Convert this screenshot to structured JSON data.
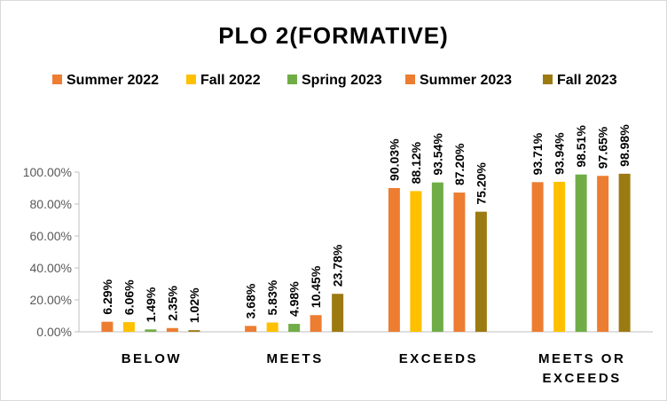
{
  "chart_data": {
    "type": "bar",
    "title": "PLO 2(FORMATIVE)",
    "categories": [
      [
        "BELOW"
      ],
      [
        "MEETS"
      ],
      [
        "EXCEEDS"
      ],
      [
        "MEETS OR",
        "EXCEEDS"
      ]
    ],
    "series": [
      {
        "name": "Summer 2022",
        "color": "#ED7D31",
        "values": [
          6.29,
          3.68,
          90.03,
          93.71
        ],
        "labels": [
          "6.29%",
          "3.68%",
          "90.03%",
          "93.71%"
        ]
      },
      {
        "name": "Fall 2022",
        "color": "#FFC000",
        "values": [
          6.06,
          5.83,
          88.12,
          93.94
        ],
        "labels": [
          "6.06%",
          "5.83%",
          "88.12%",
          "93.94%"
        ]
      },
      {
        "name": "Spring 2023",
        "color": "#70AD47",
        "values": [
          1.49,
          4.98,
          93.54,
          98.51
        ],
        "labels": [
          "1.49%",
          "4.98%",
          "93.54%",
          "98.51%"
        ]
      },
      {
        "name": "Summer 2023",
        "color": "#ED7D31",
        "values": [
          2.35,
          10.45,
          87.2,
          97.65
        ],
        "labels": [
          "2.35%",
          "10.45%",
          "87.20%",
          "97.65%"
        ]
      },
      {
        "name": "Fall 2023",
        "color": "#9C7A12",
        "values": [
          1.02,
          23.78,
          75.2,
          98.98
        ],
        "labels": [
          "1.02%",
          "23.78%",
          "75.20%",
          "98.98%"
        ]
      }
    ],
    "y_ticks": [
      0,
      20,
      40,
      60,
      80,
      100
    ],
    "y_tick_labels": [
      "0.00%",
      "20.00%",
      "40.00%",
      "60.00%",
      "80.00%",
      "100.00%"
    ],
    "ylim": [
      0,
      100
    ],
    "legend_position": "top",
    "grid": false,
    "data_labels": true
  }
}
